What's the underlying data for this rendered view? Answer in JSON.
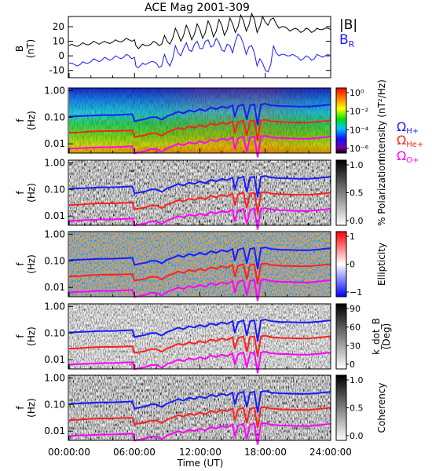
{
  "title": "ACE Mag 2001-309",
  "colors": {
    "B_total": "#000000",
    "B_R": "#1a1aff",
    "H_plus": "#1a1aff",
    "He_plus": "#ff2020",
    "O_plus": "#ff00ff"
  },
  "chart_data": [
    {
      "type": "line",
      "id": "bfield",
      "ylabel": [
        "B",
        "(nT)"
      ],
      "yticks": [
        -10,
        0,
        10,
        20
      ],
      "ylim": [
        -15,
        27
      ],
      "x": [
        0,
        0.5,
        1,
        1.5,
        2,
        2.5,
        3,
        3.5,
        4,
        4.5,
        5,
        5.5,
        6,
        6.25,
        6.5,
        7,
        7.5,
        8,
        8.5,
        9,
        9.5,
        10,
        10.5,
        11,
        11.5,
        12,
        12.5,
        13,
        13.5,
        14,
        14.5,
        15,
        15.5,
        16,
        16.5,
        17,
        17.5,
        18,
        18.5,
        19,
        19.5,
        20,
        20.5,
        21,
        21.5,
        22,
        22.5,
        23,
        23.5,
        24
      ],
      "series": [
        {
          "name": "|B|",
          "values": [
            7,
            7,
            7.5,
            8,
            8.5,
            9,
            9,
            9,
            9.5,
            10,
            10.5,
            11,
            11,
            6,
            6,
            7,
            8,
            9,
            8,
            10,
            12,
            15,
            14,
            17,
            15,
            18,
            16,
            20,
            17,
            21,
            18,
            22,
            20,
            24,
            21,
            25,
            20,
            23,
            25,
            22,
            20,
            19,
            18,
            18,
            17,
            18,
            17,
            18,
            19,
            18
          ]
        },
        {
          "name": "B_R",
          "values": [
            -5,
            -6,
            -6,
            -5,
            -4,
            -3,
            -3,
            -2,
            -2,
            -1,
            -1,
            0,
            -1,
            -8,
            -7,
            -6,
            -4,
            -5,
            -7,
            -4,
            -2,
            2,
            5,
            4,
            8,
            5,
            10,
            6,
            12,
            4,
            8,
            2,
            15,
            8,
            6,
            2,
            -2,
            -10,
            -6,
            2,
            1,
            0,
            1,
            -1,
            -2,
            -1,
            -2,
            0,
            0,
            0
          ]
        }
      ]
    },
    {
      "type": "heatmap",
      "id": "intensity",
      "ylabel": [
        "f",
        "(Hz)"
      ],
      "yticks": [
        "1.00",
        "0.10",
        "0.01"
      ],
      "colorbar": {
        "label": "Intensity (nT²/Hz)",
        "ticks": [
          "10⁰",
          "10⁻²",
          "10⁻⁴",
          "10⁻⁶"
        ],
        "scale": "rainbow"
      }
    },
    {
      "type": "heatmap",
      "id": "polarization",
      "ylabel": [
        "f",
        "(Hz)"
      ],
      "yticks": [
        "1.00",
        "0.10",
        "0.01"
      ],
      "colorbar": {
        "label": "% Polarization",
        "ticks": [
          "1.0",
          "0.5",
          "0.0"
        ],
        "scale": "gray"
      }
    },
    {
      "type": "heatmap",
      "id": "ellipticity",
      "ylabel": [
        "f",
        "(Hz)"
      ],
      "yticks": [
        "1.00",
        "0.10",
        "0.01"
      ],
      "colorbar": {
        "label": "Ellipticity",
        "ticks": [
          "1",
          "0",
          "−1"
        ],
        "scale": "bwr"
      }
    },
    {
      "type": "heatmap",
      "id": "kdotb",
      "ylabel": [
        "f",
        "(Hz)"
      ],
      "yticks": [
        "1.00",
        "0.10",
        "0.01"
      ],
      "colorbar": {
        "label": [
          "k_dot_B",
          "(Deg)"
        ],
        "ticks": [
          "90",
          "60",
          "30",
          "0"
        ],
        "scale": "gray"
      }
    },
    {
      "type": "heatmap",
      "id": "coherency",
      "ylabel": [
        "f",
        "(Hz)"
      ],
      "yticks": [
        "1.00",
        "0.10",
        "0.01"
      ],
      "colorbar": {
        "label": "Coherency",
        "ticks": [
          "1.0",
          "0.5",
          "0.0"
        ],
        "scale": "gray"
      }
    }
  ],
  "gyrofrequency_hz": {
    "x": [
      0,
      1,
      2,
      3,
      4,
      5,
      5.8,
      6,
      6.3,
      7,
      7.5,
      8,
      8.5,
      9,
      9.5,
      10,
      10.5,
      11,
      11.5,
      12,
      12.5,
      13,
      13.5,
      14,
      14.5,
      15,
      15.2,
      15.5,
      16,
      16.3,
      16.6,
      17,
      17.3,
      17.6,
      18,
      18.5,
      19,
      19.5,
      20,
      21,
      22,
      23,
      24
    ],
    "H_plus": [
      0.105,
      0.11,
      0.115,
      0.12,
      0.12,
      0.125,
      0.13,
      0.07,
      0.075,
      0.085,
      0.1,
      0.1,
      0.08,
      0.11,
      0.13,
      0.16,
      0.14,
      0.18,
      0.16,
      0.2,
      0.17,
      0.23,
      0.2,
      0.25,
      0.22,
      0.28,
      0.1,
      0.26,
      0.3,
      0.08,
      0.28,
      0.3,
      0.05,
      0.3,
      0.32,
      0.28,
      0.27,
      0.26,
      0.26,
      0.25,
      0.25,
      0.27,
      0.3
    ],
    "He_plus": [
      0.026,
      0.027,
      0.029,
      0.03,
      0.03,
      0.031,
      0.032,
      0.018,
      0.019,
      0.021,
      0.025,
      0.025,
      0.02,
      0.027,
      0.032,
      0.04,
      0.035,
      0.045,
      0.04,
      0.05,
      0.043,
      0.058,
      0.05,
      0.063,
      0.055,
      0.07,
      0.025,
      0.065,
      0.075,
      0.02,
      0.07,
      0.075,
      0.013,
      0.075,
      0.08,
      0.07,
      0.068,
      0.065,
      0.065,
      0.063,
      0.063,
      0.068,
      0.075
    ],
    "O_plus": [
      0.0066,
      0.0069,
      0.0072,
      0.0075,
      0.0075,
      0.0078,
      0.0081,
      0.0044,
      0.0047,
      0.0053,
      0.0063,
      0.0063,
      0.005,
      0.0069,
      0.0081,
      0.01,
      0.0088,
      0.0113,
      0.01,
      0.0125,
      0.0106,
      0.0144,
      0.0125,
      0.0156,
      0.0138,
      0.0175,
      0.0063,
      0.0163,
      0.0188,
      0.005,
      0.0175,
      0.0188,
      0.0031,
      0.0188,
      0.02,
      0.0175,
      0.0169,
      0.0163,
      0.0163,
      0.0156,
      0.0156,
      0.0169,
      0.0188
    ]
  },
  "legend": {
    "bfield": [
      "|B|",
      "B",
      "R"
    ],
    "ions": [
      {
        "base": "Ω",
        "sub": "H+"
      },
      {
        "base": "Ω",
        "sub": "He+"
      },
      {
        "base": "Ω",
        "sub": "O+"
      }
    ]
  },
  "xaxis": {
    "ticks": [
      "00:00:00",
      "06:00:00",
      "12:00:00",
      "18:00:00",
      "24:00:00"
    ],
    "values": [
      0,
      6,
      12,
      18,
      24
    ],
    "label": "Time (UT)"
  }
}
